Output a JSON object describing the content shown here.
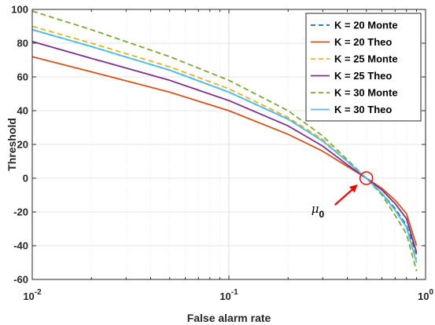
{
  "chart_data": {
    "type": "line",
    "title": "",
    "xlabel": "False alarm rate",
    "ylabel": "Threshold",
    "xscale": "log",
    "xlim": [
      0.01,
      1
    ],
    "ylim": [
      -60,
      100
    ],
    "x_ticks": [
      {
        "value": 0.01,
        "base": "10",
        "exp": "-2"
      },
      {
        "value": 0.1,
        "base": "10",
        "exp": "-1"
      },
      {
        "value": 1,
        "base": "10",
        "exp": "0"
      }
    ],
    "y_ticks": [
      -60,
      -40,
      -20,
      0,
      20,
      40,
      60,
      80,
      100
    ],
    "y_tick_labels": [
      "-60",
      "-40",
      "-20",
      "0",
      "20",
      "40",
      "60",
      "80",
      "100"
    ],
    "grid": true,
    "legend_position": "top-right",
    "series": [
      {
        "name": "K = 20 Monte",
        "color": "#0072BD",
        "dash": "dashed",
        "x": [
          0.01,
          0.02,
          0.05,
          0.1,
          0.2,
          0.3,
          0.4,
          0.5,
          0.6,
          0.7,
          0.8,
          0.9
        ],
        "y": [
          88,
          78,
          64,
          51,
          35,
          22,
          10,
          0,
          -9,
          -18,
          -28,
          -45
        ]
      },
      {
        "name": "K = 20 Theo",
        "color": "#D95319",
        "dash": "solid",
        "x": [
          0.01,
          0.02,
          0.05,
          0.1,
          0.2,
          0.3,
          0.4,
          0.5,
          0.6,
          0.7,
          0.8,
          0.9
        ],
        "y": [
          72,
          63,
          51,
          40,
          26,
          16,
          7,
          0,
          -6,
          -13,
          -21,
          -40
        ]
      },
      {
        "name": "K = 25 Monte",
        "color": "#EDB120",
        "dash": "dashed",
        "x": [
          0.01,
          0.02,
          0.05,
          0.1,
          0.2,
          0.3,
          0.4,
          0.5,
          0.6,
          0.7,
          0.8,
          0.9
        ],
        "y": [
          90,
          80,
          66,
          53,
          36,
          23,
          10,
          0,
          -9,
          -19,
          -29,
          -48
        ]
      },
      {
        "name": "K = 25 Theo",
        "color": "#7E2F8E",
        "dash": "solid",
        "x": [
          0.01,
          0.02,
          0.05,
          0.1,
          0.2,
          0.3,
          0.4,
          0.5,
          0.6,
          0.7,
          0.8,
          0.9
        ],
        "y": [
          81,
          71,
          58,
          46,
          31,
          19,
          8,
          0,
          -7,
          -15,
          -24,
          -44
        ]
      },
      {
        "name": "K = 30 Monte",
        "color": "#77AC30",
        "dash": "dashed",
        "x": [
          0.01,
          0.02,
          0.05,
          0.1,
          0.2,
          0.3,
          0.4,
          0.5,
          0.6,
          0.7,
          0.8,
          0.9
        ],
        "y": [
          99,
          88,
          72,
          58,
          40,
          25,
          11,
          0,
          -10,
          -22,
          -33,
          -55
        ]
      },
      {
        "name": "K = 30 Theo",
        "color": "#4DBEEE",
        "dash": "solid",
        "x": [
          0.01,
          0.02,
          0.05,
          0.1,
          0.2,
          0.3,
          0.4,
          0.5,
          0.6,
          0.7,
          0.8,
          0.9
        ],
        "y": [
          88,
          78,
          64,
          51,
          35,
          22,
          10,
          0,
          -9,
          -19,
          -29,
          -50
        ]
      }
    ],
    "annotation": {
      "label": "μ",
      "subscript": "0",
      "x": 0.5,
      "y": 0,
      "marker_color": "#FF0000",
      "arrow_color": "#FF0000"
    }
  }
}
